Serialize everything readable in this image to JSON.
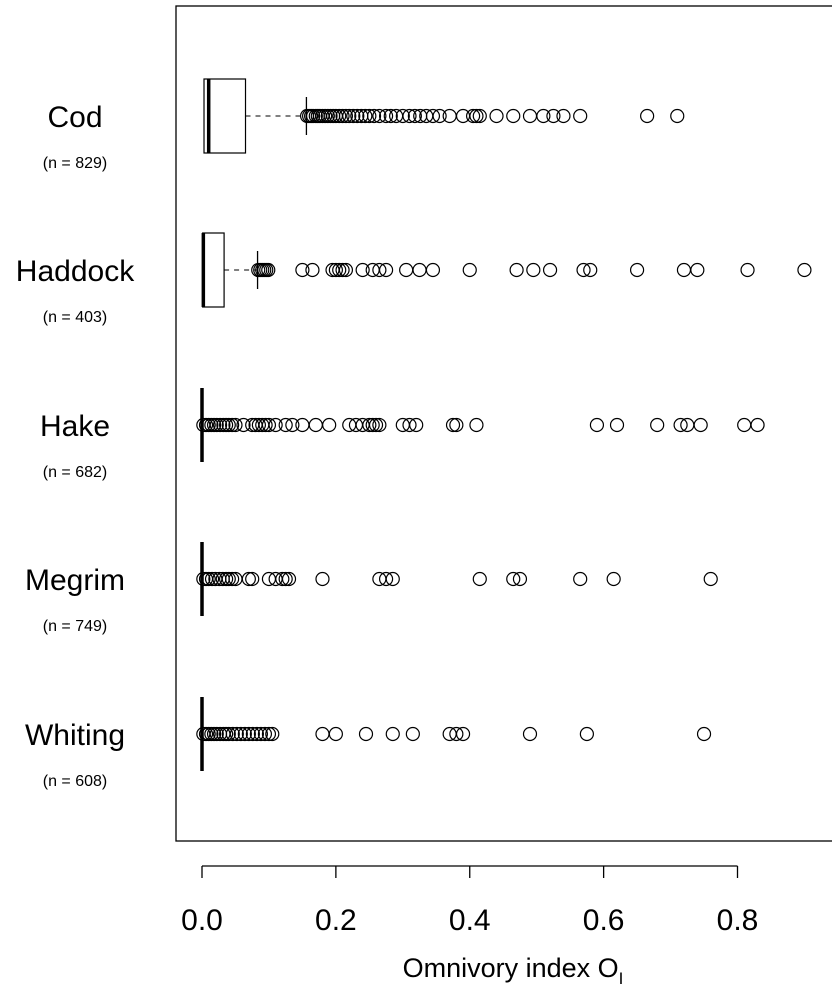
{
  "chart_data": {
    "type": "boxplot",
    "orientation": "horizontal",
    "xlabel": "Omnivory index O",
    "xlabel_subscript": "I",
    "xticks": [
      0.0,
      0.2,
      0.4,
      0.6,
      0.8
    ],
    "xtick_labels": [
      "0.0",
      "0.2",
      "0.4",
      "0.6",
      "0.8"
    ],
    "xlim": [
      -0.036,
      0.93
    ],
    "series": [
      {
        "name": "Cod",
        "n_label": "(n = 829)",
        "min": 0.0,
        "q1": 0.003,
        "median": 0.01,
        "q3": 0.065,
        "whisker_high": 0.156,
        "outliers": [
          0.157,
          0.16,
          0.163,
          0.166,
          0.17,
          0.173,
          0.176,
          0.18,
          0.184,
          0.188,
          0.192,
          0.196,
          0.2,
          0.205,
          0.21,
          0.215,
          0.22,
          0.226,
          0.232,
          0.238,
          0.244,
          0.25,
          0.257,
          0.265,
          0.275,
          0.282,
          0.29,
          0.3,
          0.31,
          0.318,
          0.326,
          0.335,
          0.345,
          0.355,
          0.37,
          0.39,
          0.405,
          0.41,
          0.415,
          0.44,
          0.465,
          0.49,
          0.51,
          0.525,
          0.54,
          0.565,
          0.665,
          0.71
        ]
      },
      {
        "name": "Haddock",
        "n_label": "(n = 403)",
        "min": 0.0,
        "q1": 0.001,
        "median": 0.002,
        "q3": 0.033,
        "whisker_high": 0.083,
        "outliers": [
          0.084,
          0.087,
          0.09,
          0.093,
          0.096,
          0.099,
          0.15,
          0.165,
          0.195,
          0.2,
          0.205,
          0.21,
          0.215,
          0.24,
          0.255,
          0.265,
          0.275,
          0.305,
          0.325,
          0.345,
          0.4,
          0.47,
          0.495,
          0.52,
          0.57,
          0.58,
          0.65,
          0.72,
          0.74,
          0.815,
          0.9
        ]
      },
      {
        "name": "Hake",
        "n_label": "(n = 682)",
        "min": 0.0,
        "q1": 0.0,
        "median": 0.0,
        "q3": 0.0,
        "whisker_high": 0.0,
        "outliers": [
          0.002,
          0.006,
          0.01,
          0.014,
          0.018,
          0.022,
          0.027,
          0.032,
          0.036,
          0.04,
          0.045,
          0.05,
          0.062,
          0.075,
          0.08,
          0.085,
          0.09,
          0.095,
          0.1,
          0.11,
          0.125,
          0.135,
          0.15,
          0.17,
          0.19,
          0.22,
          0.23,
          0.24,
          0.25,
          0.255,
          0.26,
          0.265,
          0.3,
          0.31,
          0.32,
          0.375,
          0.38,
          0.41,
          0.59,
          0.62,
          0.68,
          0.715,
          0.725,
          0.745,
          0.81,
          0.83
        ]
      },
      {
        "name": "Megrim",
        "n_label": "(n = 749)",
        "min": 0.0,
        "q1": 0.0,
        "median": 0.0,
        "q3": 0.0,
        "whisker_high": 0.0,
        "outliers": [
          0.002,
          0.006,
          0.01,
          0.015,
          0.02,
          0.026,
          0.031,
          0.036,
          0.04,
          0.045,
          0.05,
          0.07,
          0.075,
          0.1,
          0.11,
          0.12,
          0.125,
          0.13,
          0.18,
          0.265,
          0.275,
          0.285,
          0.415,
          0.465,
          0.475,
          0.565,
          0.615,
          0.76
        ]
      },
      {
        "name": "Whiting",
        "n_label": "(n = 608)",
        "min": 0.0,
        "q1": 0.0,
        "median": 0.0,
        "q3": 0.0,
        "whisker_high": 0.0,
        "outliers": [
          0.002,
          0.006,
          0.01,
          0.014,
          0.018,
          0.022,
          0.027,
          0.032,
          0.036,
          0.04,
          0.046,
          0.052,
          0.058,
          0.064,
          0.07,
          0.076,
          0.082,
          0.088,
          0.094,
          0.1,
          0.105,
          0.18,
          0.2,
          0.245,
          0.285,
          0.315,
          0.37,
          0.38,
          0.39,
          0.49,
          0.575,
          0.75
        ]
      }
    ]
  }
}
